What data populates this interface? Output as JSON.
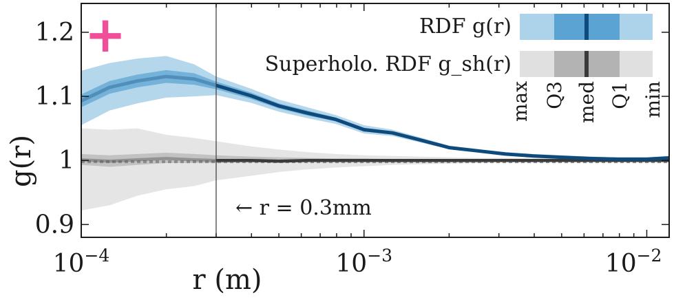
{
  "chart_data": {
    "type": "line",
    "xlabel": "r (m)",
    "ylabel": "g(r)",
    "xscale": "log",
    "xlim": [
      0.0001,
      0.012
    ],
    "ylim": [
      0.88,
      1.245
    ],
    "x_ticks": [
      {
        "value": 0.0001,
        "base": "10",
        "exp": "−4"
      },
      {
        "value": 0.001,
        "base": "10",
        "exp": "−3"
      },
      {
        "value": 0.01,
        "base": "10",
        "exp": "−2"
      }
    ],
    "y_ticks": [
      {
        "value": 0.9,
        "label": "0.9"
      },
      {
        "value": 1.0,
        "label": "1"
      },
      {
        "value": 1.1,
        "label": "1.1"
      },
      {
        "value": 1.2,
        "label": "1.2"
      }
    ],
    "vline": {
      "x": 0.0003
    },
    "annotation": "← r = 0.3mm",
    "marker_symbol": "+",
    "colors": {
      "rdf_line": "#0e4a7c",
      "rdf_band_outer": "#add3ea",
      "rdf_band_inner": "#5aa3d3",
      "sh_line": "#3a3a3a",
      "sh_band_outer": "#e0e0e0",
      "sh_band_inner": "#b3b3b3",
      "reference": "#8c8c8c",
      "marker": "#f04e98"
    },
    "legend": {
      "entries": [
        "RDF g(r)",
        "Superholo. RDF g_sh(r)"
      ],
      "quantile_labels": [
        "max",
        "Q3",
        "med",
        "Q1",
        "min"
      ]
    },
    "series": [
      {
        "name": "RDF g(r)",
        "x": [
          0.0001,
          0.000126,
          0.000158,
          0.0002,
          0.000251,
          0.0003,
          0.000398,
          0.0005,
          0.00063,
          0.000794,
          0.001,
          0.00126,
          0.00158,
          0.002,
          0.00251,
          0.00316,
          0.00398,
          0.005,
          0.0063,
          0.00794,
          0.01,
          0.012
        ],
        "median": [
          1.093,
          1.114,
          1.124,
          1.131,
          1.127,
          1.117,
          1.101,
          1.085,
          1.074,
          1.064,
          1.048,
          1.043,
          1.032,
          1.02,
          1.015,
          1.01,
          1.007,
          1.005,
          1.003,
          1.002,
          1.002,
          1.004
        ],
        "q1": [
          1.083,
          1.104,
          1.114,
          1.121,
          1.118,
          1.111,
          1.096,
          1.081,
          1.07,
          1.061,
          1.045,
          1.041,
          1.03,
          1.019,
          1.014,
          1.009,
          1.006,
          1.004,
          1.002,
          1.001,
          1.001,
          1.003
        ],
        "q3": [
          1.103,
          1.124,
          1.134,
          1.141,
          1.136,
          1.123,
          1.106,
          1.089,
          1.078,
          1.067,
          1.051,
          1.045,
          1.034,
          1.021,
          1.016,
          1.011,
          1.008,
          1.006,
          1.004,
          1.003,
          1.003,
          1.005
        ],
        "min": [
          1.055,
          1.078,
          1.089,
          1.098,
          1.1,
          1.102,
          1.09,
          1.076,
          1.066,
          1.057,
          1.042,
          1.038,
          1.028,
          1.018,
          1.013,
          1.008,
          1.005,
          1.003,
          1.002,
          1.001,
          1.001,
          1.002
        ],
        "max": [
          1.14,
          1.152,
          1.159,
          1.163,
          1.15,
          1.131,
          1.112,
          1.095,
          1.083,
          1.071,
          1.055,
          1.048,
          1.036,
          1.023,
          1.018,
          1.013,
          1.01,
          1.008,
          1.006,
          1.005,
          1.005,
          1.007
        ]
      },
      {
        "name": "Superholo. RDF g_sh(r)",
        "x": [
          0.0001,
          0.000126,
          0.000158,
          0.0002,
          0.000251,
          0.0003,
          0.000398,
          0.0005,
          0.00063,
          0.000794,
          0.001,
          0.00126,
          0.00158,
          0.002,
          0.00251,
          0.00316,
          0.00398,
          0.005,
          0.0063,
          0.00794,
          0.01,
          0.012
        ],
        "median": [
          1.001,
          0.999,
          1.001,
          1.003,
          1.001,
          1.0,
          1.0,
          0.999,
          1.0,
          1.0,
          1.0,
          1.0,
          1.0,
          1.0,
          1.0,
          1.0,
          1.0,
          1.0,
          1.0,
          1.0,
          1.0,
          1.0
        ],
        "q1": [
          0.993,
          0.99,
          0.993,
          0.996,
          0.996,
          0.996,
          0.997,
          0.998,
          0.998,
          0.998,
          0.998,
          0.999,
          0.999,
          0.999,
          0.999,
          0.999,
          0.999,
          0.999,
          0.999,
          0.999,
          0.999,
          0.999
        ],
        "q3": [
          1.01,
          1.008,
          1.01,
          1.012,
          1.01,
          1.008,
          1.006,
          1.005,
          1.004,
          1.003,
          1.003,
          1.002,
          1.002,
          1.002,
          1.002,
          1.001,
          1.001,
          1.001,
          1.001,
          1.001,
          1.001,
          1.001
        ],
        "min": [
          0.922,
          0.93,
          0.945,
          0.955,
          0.96,
          0.969,
          0.976,
          0.982,
          0.986,
          0.989,
          0.991,
          0.993,
          0.994,
          0.995,
          0.996,
          0.997,
          0.997,
          0.998,
          0.998,
          0.998,
          0.998,
          0.998
        ],
        "max": [
          1.05,
          1.048,
          1.05,
          1.04,
          1.035,
          1.03,
          1.022,
          1.017,
          1.013,
          1.01,
          1.008,
          1.007,
          1.006,
          1.005,
          1.004,
          1.004,
          1.003,
          1.003,
          1.003,
          1.003,
          1.003,
          1.003
        ]
      },
      {
        "name": "reference",
        "x": [
          0.0001,
          0.012
        ],
        "values": [
          0.998,
          0.998
        ]
      }
    ]
  }
}
